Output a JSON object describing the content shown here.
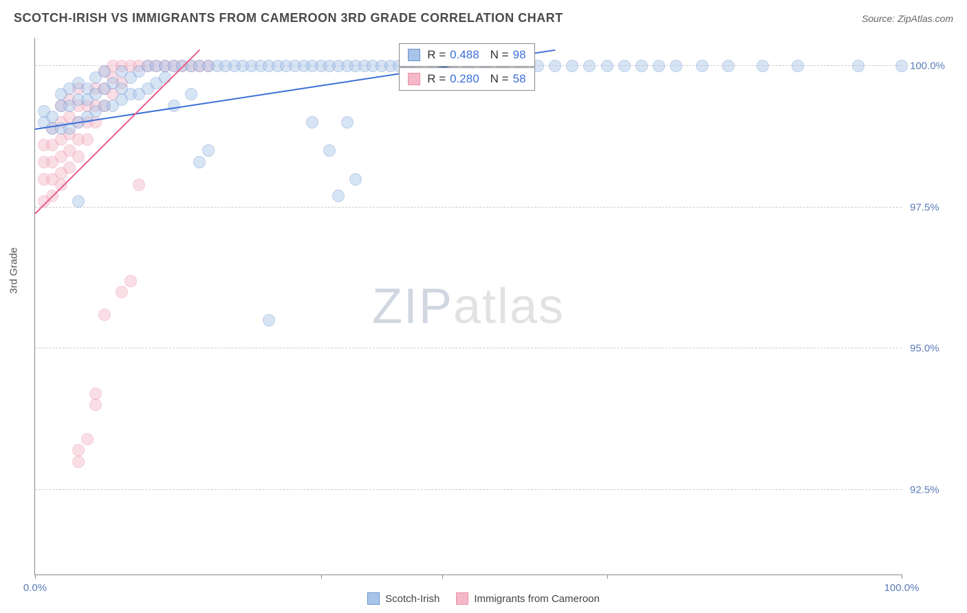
{
  "title": "SCOTCH-IRISH VS IMMIGRANTS FROM CAMEROON 3RD GRADE CORRELATION CHART",
  "source": "Source: ZipAtlas.com",
  "ylabel": "3rd Grade",
  "watermark": {
    "part1": "ZIP",
    "part2": "atlas"
  },
  "chart": {
    "type": "scatter",
    "background_color": "#ffffff",
    "grid_color": "#cccccc",
    "axis_color": "#888888",
    "text_color": "#555555",
    "tick_label_color": "#5b7bb8",
    "xlim": [
      0,
      100
    ],
    "ylim": [
      91.0,
      100.5
    ],
    "xticks": [
      0,
      33,
      47,
      66,
      100
    ],
    "xtick_labels": {
      "first": "0.0%",
      "last": "100.0%"
    },
    "yticks": [
      92.5,
      95.0,
      97.5,
      100.0
    ],
    "ytick_labels": [
      "92.5%",
      "95.0%",
      "97.5%",
      "100.0%"
    ],
    "marker_radius": 9,
    "marker_opacity": 0.45,
    "series": [
      {
        "name": "Scotch-Irish",
        "color_fill": "#a8c4e8",
        "color_stroke": "#6b93cf",
        "R": "0.488",
        "N": "98",
        "trend": {
          "x1": 0,
          "y1": 98.9,
          "x2": 60,
          "y2": 100.3,
          "color": "#3b6fd8",
          "width": 2
        },
        "points": [
          [
            1,
            99.0
          ],
          [
            1,
            99.2
          ],
          [
            2,
            98.9
          ],
          [
            2,
            99.1
          ],
          [
            3,
            98.9
          ],
          [
            3,
            99.3
          ],
          [
            3,
            99.5
          ],
          [
            4,
            98.9
          ],
          [
            4,
            99.3
          ],
          [
            4,
            99.6
          ],
          [
            5,
            99.0
          ],
          [
            5,
            99.4
          ],
          [
            5,
            99.7
          ],
          [
            5,
            97.6
          ],
          [
            6,
            99.1
          ],
          [
            6,
            99.4
          ],
          [
            6,
            99.6
          ],
          [
            7,
            99.2
          ],
          [
            7,
            99.5
          ],
          [
            7,
            99.8
          ],
          [
            8,
            99.3
          ],
          [
            8,
            99.6
          ],
          [
            8,
            99.9
          ],
          [
            9,
            99.3
          ],
          [
            9,
            99.7
          ],
          [
            10,
            99.4
          ],
          [
            10,
            99.6
          ],
          [
            10,
            99.9
          ],
          [
            11,
            99.5
          ],
          [
            11,
            99.8
          ],
          [
            12,
            99.5
          ],
          [
            12,
            99.9
          ],
          [
            13,
            99.6
          ],
          [
            13,
            100.0
          ],
          [
            14,
            99.7
          ],
          [
            14,
            100.0
          ],
          [
            15,
            99.8
          ],
          [
            15,
            100.0
          ],
          [
            16,
            99.3
          ],
          [
            16,
            100.0
          ],
          [
            17,
            100.0
          ],
          [
            18,
            100.0
          ],
          [
            18,
            99.5
          ],
          [
            19,
            98.3
          ],
          [
            19,
            100.0
          ],
          [
            20,
            98.5
          ],
          [
            20,
            100.0
          ],
          [
            21,
            100.0
          ],
          [
            22,
            100.0
          ],
          [
            23,
            100.0
          ],
          [
            24,
            100.0
          ],
          [
            25,
            100.0
          ],
          [
            26,
            100.0
          ],
          [
            27,
            95.5
          ],
          [
            27,
            100.0
          ],
          [
            28,
            100.0
          ],
          [
            29,
            100.0
          ],
          [
            30,
            100.0
          ],
          [
            31,
            100.0
          ],
          [
            32,
            100.0
          ],
          [
            32,
            99.0
          ],
          [
            33,
            100.0
          ],
          [
            34,
            100.0
          ],
          [
            34,
            98.5
          ],
          [
            35,
            100.0
          ],
          [
            35,
            97.7
          ],
          [
            36,
            100.0
          ],
          [
            36,
            99.0
          ],
          [
            37,
            98.0
          ],
          [
            37,
            100.0
          ],
          [
            38,
            100.0
          ],
          [
            39,
            100.0
          ],
          [
            40,
            100.0
          ],
          [
            41,
            100.0
          ],
          [
            42,
            100.0
          ],
          [
            43,
            100.0
          ],
          [
            44,
            100.0
          ],
          [
            46,
            100.0
          ],
          [
            48,
            100.0
          ],
          [
            50,
            100.0
          ],
          [
            52,
            100.0
          ],
          [
            54,
            100.0
          ],
          [
            56,
            100.0
          ],
          [
            58,
            100.0
          ],
          [
            60,
            100.0
          ],
          [
            62,
            100.0
          ],
          [
            64,
            100.0
          ],
          [
            66,
            100.0
          ],
          [
            68,
            100.0
          ],
          [
            70,
            100.0
          ],
          [
            72,
            100.0
          ],
          [
            74,
            100.0
          ],
          [
            77,
            100.0
          ],
          [
            80,
            100.0
          ],
          [
            84,
            100.0
          ],
          [
            88,
            100.0
          ],
          [
            95,
            100.0
          ],
          [
            100,
            100.0
          ]
        ]
      },
      {
        "name": "Immigrants from Cameroon",
        "color_fill": "#f4b8c8",
        "color_stroke": "#e88fa8",
        "R": "0.280",
        "N": "58",
        "trend": {
          "x1": 0,
          "y1": 97.4,
          "x2": 19,
          "y2": 100.3,
          "color": "#e85d8a",
          "width": 2
        },
        "points": [
          [
            1,
            97.6
          ],
          [
            1,
            98.0
          ],
          [
            1,
            98.3
          ],
          [
            1,
            98.6
          ],
          [
            2,
            97.7
          ],
          [
            2,
            98.0
          ],
          [
            2,
            98.3
          ],
          [
            2,
            98.6
          ],
          [
            2,
            98.9
          ],
          [
            3,
            97.9
          ],
          [
            3,
            98.1
          ],
          [
            3,
            98.4
          ],
          [
            3,
            98.7
          ],
          [
            3,
            99.0
          ],
          [
            3,
            99.3
          ],
          [
            4,
            98.2
          ],
          [
            4,
            98.5
          ],
          [
            4,
            98.8
          ],
          [
            4,
            99.1
          ],
          [
            4,
            99.4
          ],
          [
            5,
            98.4
          ],
          [
            5,
            98.7
          ],
          [
            5,
            99.0
          ],
          [
            5,
            99.3
          ],
          [
            5,
            99.6
          ],
          [
            5,
            93.0
          ],
          [
            5,
            93.2
          ],
          [
            6,
            98.7
          ],
          [
            6,
            99.0
          ],
          [
            6,
            99.3
          ],
          [
            6,
            93.4
          ],
          [
            7,
            99.0
          ],
          [
            7,
            99.3
          ],
          [
            7,
            99.6
          ],
          [
            7,
            94.0
          ],
          [
            7,
            94.2
          ],
          [
            8,
            99.3
          ],
          [
            8,
            99.6
          ],
          [
            8,
            99.9
          ],
          [
            8,
            95.6
          ],
          [
            9,
            99.5
          ],
          [
            9,
            99.8
          ],
          [
            9,
            100.0
          ],
          [
            10,
            99.7
          ],
          [
            10,
            100.0
          ],
          [
            10,
            96.0
          ],
          [
            11,
            100.0
          ],
          [
            11,
            96.2
          ],
          [
            12,
            100.0
          ],
          [
            12,
            97.9
          ],
          [
            13,
            100.0
          ],
          [
            14,
            100.0
          ],
          [
            15,
            100.0
          ],
          [
            16,
            100.0
          ],
          [
            17,
            100.0
          ],
          [
            18,
            100.0
          ],
          [
            19,
            100.0
          ],
          [
            20,
            100.0
          ]
        ]
      }
    ],
    "stats_boxes": [
      {
        "series_index": 0,
        "left_pct": 42,
        "top_pct": 1
      },
      {
        "series_index": 1,
        "left_pct": 42,
        "top_pct": 5.5
      }
    ],
    "legend": [
      {
        "label": "Scotch-Irish",
        "fill": "#a8c4e8",
        "stroke": "#6b93cf"
      },
      {
        "label": "Immigrants from Cameroon",
        "fill": "#f4b8c8",
        "stroke": "#e88fa8"
      }
    ]
  }
}
